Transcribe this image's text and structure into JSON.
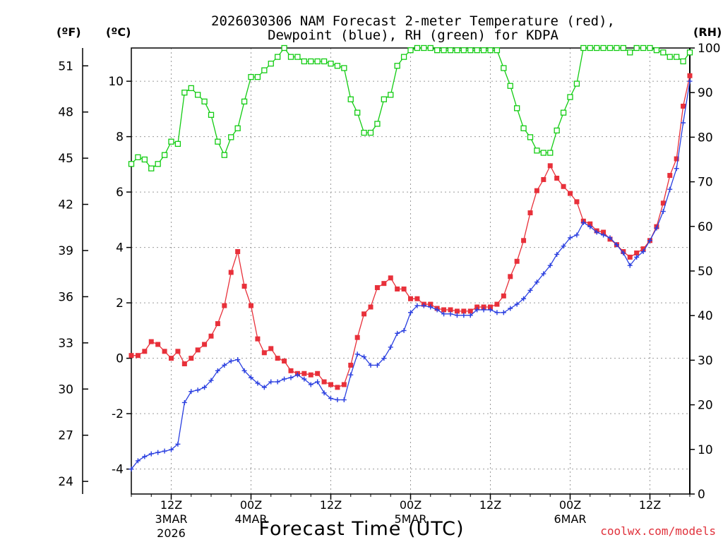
{
  "chart_data": {
    "type": "line",
    "title_line1": "2026030306 NAM Forecast 2-meter Temperature (red),",
    "title_line2": "Dewpoint (blue), RH (green) for KDPA",
    "xlabel": "Forecast Time (UTC)",
    "credit": "coolwx.com/models",
    "units": {
      "fahrenheit": "(ºF)",
      "celsius": "(ºC)",
      "rh": "(RH)"
    },
    "x_range_hours": [
      6,
      90
    ],
    "ylim_celsius": [
      -4.9,
      11.2
    ],
    "ylim_rh": [
      0,
      100
    ],
    "celsius_ticks": [
      "-4",
      "-2",
      "0",
      "2",
      "4",
      "6",
      "8",
      "10"
    ],
    "fahrenheit_ticks": [
      "24",
      "27",
      "30",
      "33",
      "36",
      "39",
      "42",
      "45",
      "48",
      "51"
    ],
    "rh_ticks": [
      "0",
      "10",
      "20",
      "30",
      "40",
      "50",
      "60",
      "70",
      "80",
      "90",
      "100"
    ],
    "x_ticks": [
      {
        "hour": 12,
        "label": "12Z",
        "sub1": "3MAR",
        "sub2": "2026"
      },
      {
        "hour": 24,
        "label": "00Z",
        "sub1": "4MAR",
        "sub2": ""
      },
      {
        "hour": 36,
        "label": "12Z",
        "sub1": "",
        "sub2": ""
      },
      {
        "hour": 48,
        "label": "00Z",
        "sub1": "5MAR",
        "sub2": ""
      },
      {
        "hour": 60,
        "label": "12Z",
        "sub1": "",
        "sub2": ""
      },
      {
        "hour": 72,
        "label": "00Z",
        "sub1": "6MAR",
        "sub2": ""
      },
      {
        "hour": 84,
        "label": "12Z",
        "sub1": "",
        "sub2": ""
      }
    ],
    "colors": {
      "temperature": "#e8303a",
      "dewpoint": "#2a3fe0",
      "rh": "#12cc12"
    },
    "series": [
      {
        "name": "Temperature (°C)",
        "key": "temperature",
        "start_hour": 6,
        "step_hours": 1,
        "values": [
          0.1,
          0.1,
          0.25,
          0.6,
          0.5,
          0.25,
          0,
          0.25,
          -0.2,
          0,
          0.3,
          0.5,
          0.8,
          1.25,
          1.9,
          3.1,
          3.85,
          2.6,
          1.9,
          0.7,
          0.2,
          0.35,
          0,
          -0.1,
          -0.45,
          -0.55,
          -0.55,
          -0.6,
          -0.55,
          -0.85,
          -0.95,
          -1.05,
          -0.95,
          -0.25,
          0.75,
          1.6,
          1.85,
          2.55,
          2.7,
          2.9,
          2.5,
          2.5,
          2.15,
          2.15,
          1.95,
          1.95,
          1.8,
          1.75,
          1.75,
          1.7,
          1.7,
          1.7,
          1.85,
          1.85,
          1.85,
          1.95,
          2.25,
          2.95,
          3.5,
          4.25,
          5.25,
          6.05,
          6.45,
          6.95,
          6.5,
          6.2,
          5.95,
          5.65,
          4.95,
          4.85,
          4.6,
          4.55,
          4.3,
          4.1,
          3.85,
          3.65,
          3.8,
          3.95,
          4.25,
          4.75,
          5.6,
          6.6,
          7.2,
          9.1,
          10.2
        ]
      },
      {
        "name": "Dewpoint (°C)",
        "key": "dewpoint",
        "start_hour": 6,
        "step_hours": 1,
        "values": [
          -4,
          -3.7,
          -3.55,
          -3.45,
          -3.4,
          -3.35,
          -3.3,
          -3.1,
          -1.6,
          -1.2,
          -1.15,
          -1.05,
          -0.8,
          -0.45,
          -0.25,
          -0.1,
          -0.05,
          -0.45,
          -0.7,
          -0.9,
          -1.05,
          -0.85,
          -0.85,
          -0.75,
          -0.7,
          -0.6,
          -0.75,
          -0.95,
          -0.85,
          -1.25,
          -1.45,
          -1.5,
          -1.5,
          -0.6,
          0.15,
          0.05,
          -0.25,
          -0.25,
          0,
          0.4,
          0.9,
          1,
          1.65,
          1.9,
          1.9,
          1.85,
          1.75,
          1.6,
          1.6,
          1.55,
          1.55,
          1.55,
          1.75,
          1.75,
          1.75,
          1.65,
          1.65,
          1.8,
          1.95,
          2.15,
          2.45,
          2.75,
          3.05,
          3.35,
          3.75,
          4.05,
          4.35,
          4.45,
          4.9,
          4.75,
          4.55,
          4.45,
          4.35,
          4.1,
          3.8,
          3.35,
          3.65,
          3.85,
          4.25,
          4.7,
          5.3,
          6.1,
          6.85,
          8.5,
          10
        ]
      },
      {
        "name": "Relative Humidity (%)",
        "key": "rh",
        "start_hour": 6,
        "step_hours": 1,
        "values": [
          74,
          75.5,
          75,
          73,
          74,
          76,
          79,
          78.5,
          90,
          91,
          89.5,
          88,
          85,
          79,
          76,
          80,
          82,
          88,
          93.5,
          93.5,
          95,
          96.5,
          98,
          100,
          98,
          98,
          97,
          97,
          97,
          97,
          96.5,
          96,
          95.5,
          88.5,
          85.5,
          81,
          81,
          83,
          88.5,
          89.5,
          96,
          98,
          99.5,
          100,
          100,
          100,
          99.5,
          99.5,
          99.5,
          99.5,
          99.5,
          99.5,
          99.5,
          99.5,
          99.5,
          99.5,
          95.5,
          91.5,
          86.5,
          82,
          80,
          77,
          76.5,
          76.5,
          81.5,
          85.5,
          89,
          92,
          100,
          100,
          100,
          100,
          100,
          100,
          100,
          99,
          100,
          100,
          100,
          99.5,
          99,
          98,
          98,
          97,
          99
        ]
      }
    ]
  }
}
